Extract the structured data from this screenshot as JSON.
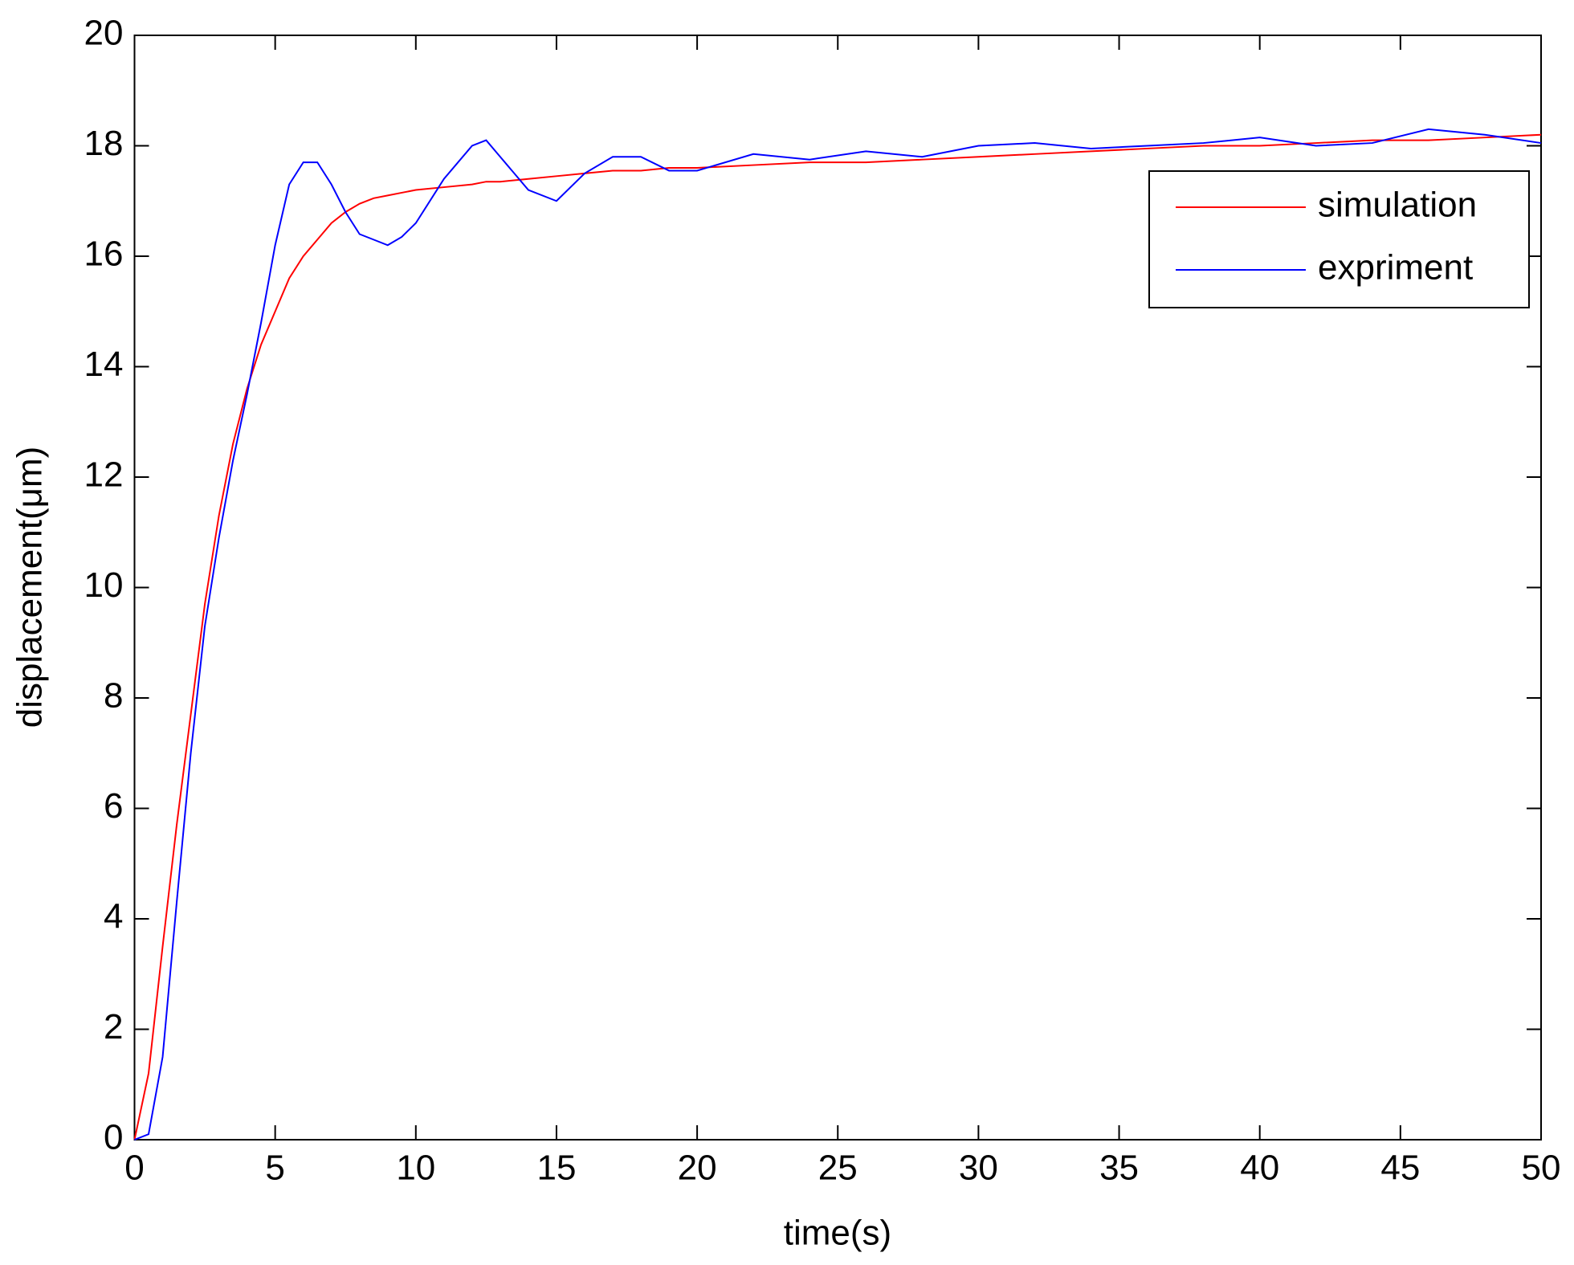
{
  "chart_data": {
    "type": "line",
    "x_label": "time(s)",
    "y_label": "displacement(μm)",
    "x": [
      0,
      0.5,
      1,
      1.5,
      2,
      2.5,
      3,
      3.5,
      4,
      4.5,
      5,
      5.5,
      6,
      6.5,
      7,
      7.5,
      8,
      8.5,
      9,
      9.5,
      10,
      11,
      12,
      12.5,
      13,
      14,
      15,
      16,
      17,
      18,
      19,
      20,
      22,
      24,
      26,
      28,
      30,
      32,
      34,
      36,
      38,
      40,
      42,
      44,
      46,
      48,
      50
    ],
    "series": [
      {
        "name": "simulation",
        "color": "#ff0000",
        "values": [
          0,
          1.2,
          3.5,
          5.7,
          7.7,
          9.7,
          11.3,
          12.6,
          13.6,
          14.4,
          15.0,
          15.6,
          16.0,
          16.3,
          16.6,
          16.8,
          16.95,
          17.05,
          17.1,
          17.15,
          17.2,
          17.25,
          17.3,
          17.35,
          17.35,
          17.4,
          17.45,
          17.5,
          17.55,
          17.55,
          17.6,
          17.6,
          17.65,
          17.7,
          17.7,
          17.75,
          17.8,
          17.85,
          17.9,
          17.95,
          18.0,
          18.0,
          18.05,
          18.1,
          18.1,
          18.15,
          18.2
        ]
      },
      {
        "name": "expriment",
        "color": "#0000ff",
        "values": [
          0,
          0.1,
          1.5,
          4.3,
          7.0,
          9.3,
          10.9,
          12.3,
          13.5,
          14.8,
          16.2,
          17.3,
          17.7,
          17.7,
          17.3,
          16.8,
          16.4,
          16.3,
          16.2,
          16.35,
          16.6,
          17.4,
          18.0,
          18.1,
          17.8,
          17.2,
          17.0,
          17.5,
          17.8,
          17.8,
          17.55,
          17.55,
          17.85,
          17.75,
          17.9,
          17.8,
          18.0,
          18.05,
          17.95,
          18.0,
          18.05,
          18.15,
          18.0,
          18.05,
          18.3,
          18.2,
          18.05
        ]
      }
    ],
    "xlim": [
      0,
      50
    ],
    "ylim": [
      0,
      20
    ],
    "xticks": [
      0,
      5,
      10,
      15,
      20,
      25,
      30,
      35,
      40,
      45,
      50
    ],
    "yticks": [
      0,
      2,
      4,
      6,
      8,
      10,
      12,
      14,
      16,
      18,
      20
    ],
    "legend": "upper right"
  }
}
